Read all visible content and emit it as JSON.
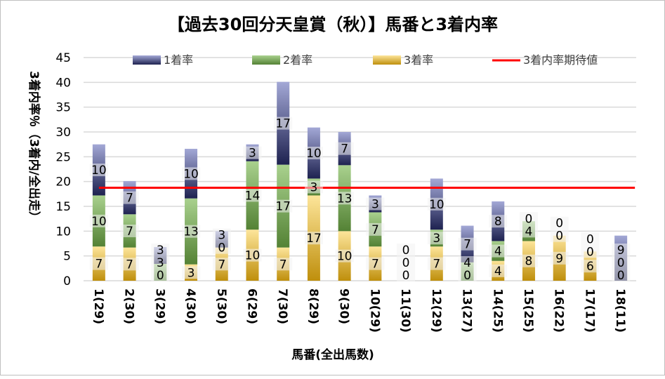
{
  "chart_data": {
    "type": "bar",
    "stacked": true,
    "title": "【過去30回分天皇賞（秋）】馬番と3着内率",
    "xlabel": "馬番(全出馬数)",
    "ylabel": "3着内率％（3着内/全出走）",
    "ylim": [
      0,
      45
    ],
    "yticks": [
      0,
      5,
      10,
      15,
      20,
      25,
      30,
      35,
      40,
      45
    ],
    "grid": true,
    "legend_position": "top",
    "categories": [
      "1(29)",
      "2(30)",
      "3(29)",
      "4(30)",
      "5(30)",
      "6(29)",
      "7(30)",
      "8(29)",
      "9(30)",
      "10(29)",
      "11(30)",
      "12(29)",
      "13(27)",
      "14(25)",
      "15(25)",
      "16(22)",
      "17(17)",
      "18(11)"
    ],
    "series": [
      {
        "name": "3着率",
        "color": "#c9961a",
        "values": [
          6.9,
          6.7,
          0,
          3.3,
          6.7,
          10.3,
          6.7,
          17.2,
          10,
          6.9,
          0,
          6.9,
          0,
          4,
          8,
          9.1,
          5.9,
          0
        ]
      },
      {
        "name": "2着率",
        "color": "#70ad47",
        "values": [
          10.3,
          6.7,
          3.4,
          13.3,
          0,
          13.8,
          16.7,
          3.4,
          13.3,
          6.9,
          0,
          3.4,
          3.7,
          4,
          4,
          0,
          0,
          0
        ]
      },
      {
        "name": "1着率",
        "color": "#3b3f8c",
        "values": [
          10.3,
          6.7,
          3.4,
          10,
          3.3,
          3.4,
          16.7,
          10.3,
          6.7,
          3.4,
          0,
          10.3,
          7.4,
          8,
          0,
          0,
          0,
          9.1
        ]
      }
    ],
    "reference_line": {
      "name": "3着内率期待値",
      "value": 18.75,
      "color": "#ff0000"
    }
  }
}
